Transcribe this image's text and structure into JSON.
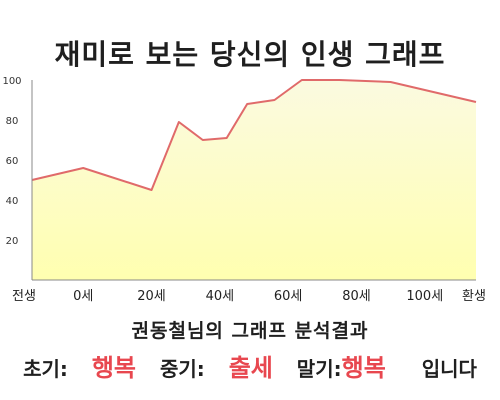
{
  "chart_data": {
    "type": "area",
    "title": "재미로 보는 당신의 인생 그래프",
    "xlabel": "",
    "ylabel": "",
    "x_tick_labels": [
      "전생",
      "0세",
      "20세",
      "40세",
      "60세",
      "80세",
      "100세",
      "환생"
    ],
    "x_tick_positions": [
      -15,
      0,
      20,
      40,
      60,
      80,
      100,
      115
    ],
    "y_ticks": [
      20,
      40,
      60,
      80,
      100
    ],
    "xlim": [
      -15,
      115
    ],
    "ylim": [
      0,
      100
    ],
    "grid": false,
    "colors": {
      "line": "#e06a6a",
      "fill_top": "#fbfae0",
      "fill_bottom": "#ffffb0",
      "axis": "#888888"
    },
    "series": [
      {
        "x": [
          -15,
          0,
          20,
          28,
          35,
          42,
          48,
          56,
          64,
          75,
          90,
          115
        ],
        "values": [
          50,
          56,
          45,
          79,
          70,
          71,
          88,
          90,
          100,
          100,
          99,
          89
        ]
      }
    ]
  },
  "analysis": {
    "title": "권동철님의 그래프 분석결과",
    "early_label": "초기:",
    "early_value": "행복",
    "mid_label": "중기:",
    "mid_value": "출세",
    "late_label": "말기:",
    "late_value": "행복",
    "closing": "입니다",
    "highlight_color": "#e8474f"
  }
}
